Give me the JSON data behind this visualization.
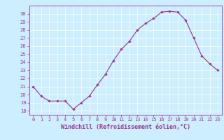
{
  "x": [
    0,
    1,
    2,
    3,
    4,
    5,
    6,
    7,
    8,
    9,
    10,
    11,
    12,
    13,
    14,
    15,
    16,
    17,
    18,
    19,
    20,
    21,
    22,
    23
  ],
  "y": [
    21.0,
    19.8,
    19.2,
    19.2,
    19.2,
    18.2,
    19.0,
    19.8,
    21.2,
    22.5,
    24.2,
    25.6,
    26.6,
    28.0,
    28.8,
    29.4,
    30.2,
    30.3,
    30.2,
    29.2,
    27.0,
    24.8,
    23.8,
    23.0
  ],
  "xlim": [
    -0.5,
    23.5
  ],
  "ylim": [
    17.5,
    31.0
  ],
  "yticks": [
    18,
    19,
    20,
    21,
    22,
    23,
    24,
    25,
    26,
    27,
    28,
    29,
    30
  ],
  "xticks": [
    0,
    1,
    2,
    3,
    4,
    5,
    6,
    7,
    8,
    9,
    10,
    11,
    12,
    13,
    14,
    15,
    16,
    17,
    18,
    19,
    20,
    21,
    22,
    23
  ],
  "xlabel": "Windchill (Refroidissement éolien,°C)",
  "line_color": "#993399",
  "marker": "D",
  "marker_size": 1.8,
  "bg_color": "#cceeff",
  "grid_color": "#ffffff",
  "font_color": "#993399",
  "tick_label_fontsize": 5.0,
  "xlabel_fontsize": 6.0
}
